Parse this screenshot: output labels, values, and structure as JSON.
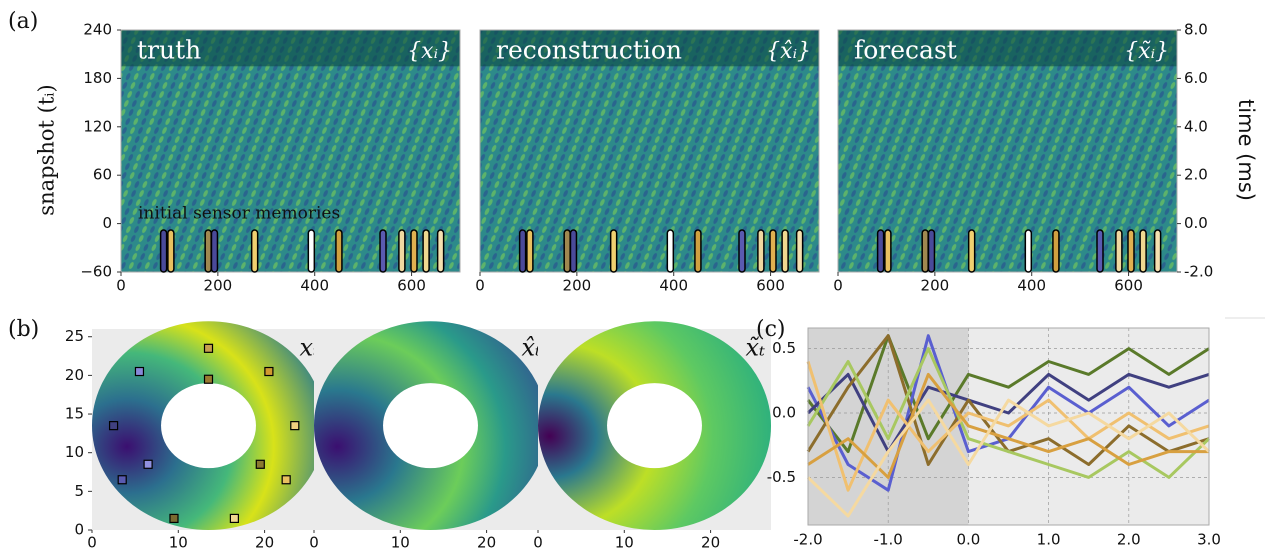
{
  "chart_data": [
    {
      "type": "heatmap",
      "label": "(a)",
      "ylabel": "snapshot (tᵢ)",
      "y2label": "time (ms)",
      "annotation": "initial sensor memories",
      "subplots": [
        {
          "title": "truth",
          "symbol": "{xᵢ}"
        },
        {
          "title": "reconstruction",
          "symbol": "{x̂ᵢ}"
        },
        {
          "title": "forecast",
          "symbol": "{x̃ᵢ}"
        }
      ],
      "xlim": [
        0,
        700
      ],
      "xticks": [
        0,
        200,
        400,
        600
      ],
      "ylim": [
        -60,
        240
      ],
      "yticks": [
        {
          "value": -60,
          "label": "−60"
        },
        0,
        60,
        120,
        180,
        240
      ],
      "y2lim": [
        -2,
        8
      ],
      "y2ticks": [
        {
          "value": -2,
          "label": "-2.0"
        },
        {
          "value": 0,
          "label": "0.0"
        },
        {
          "value": 2,
          "label": "2.0"
        },
        {
          "value": 4,
          "label": "4.0"
        },
        {
          "value": 6,
          "label": "6.0"
        },
        {
          "value": 8,
          "label": "8.0"
        }
      ],
      "sensor_positions": [
        88,
        103,
        180,
        193,
        276,
        393,
        450,
        541,
        580,
        605,
        630,
        660
      ],
      "sensor_colors": [
        "#4a4a9a",
        "#e8c060",
        "#a08850",
        "#4a4a9a",
        "#f0d070",
        "#ffffff",
        "#d0a040",
        "#5a5ab0",
        "#f0d8a0",
        "#e0b050",
        "#f0d890",
        "#f5e0b0"
      ]
    },
    {
      "type": "annulus",
      "label": "(b)",
      "subplots": [
        {
          "symbol": "xₜ"
        },
        {
          "symbol": "x̂ₜ"
        },
        {
          "symbol": "x̃ₜ"
        }
      ],
      "xlim": [
        0,
        27
      ],
      "xticks": [
        0,
        10,
        20
      ],
      "ylim": [
        0,
        26
      ],
      "yticks": [
        0,
        5,
        10,
        15,
        20,
        25
      ],
      "sensors": {
        "x": [
          2.5,
          3.5,
          5.5,
          6.5,
          9.5,
          13.5,
          13.5,
          16.5,
          19.5,
          20.5,
          22.5,
          23.5
        ],
        "y": [
          13.5,
          6.5,
          20.5,
          8.5,
          1.5,
          23.5,
          19.5,
          1.5,
          8.5,
          20.5,
          6.5,
          13.5
        ],
        "colors": [
          "#404080",
          "#5a5ab0",
          "#8888d8",
          "#9090e0",
          "#7a6a30",
          "#c8a050",
          "#9a7a30",
          "#f0d890",
          "#8a7a30",
          "#d09a30",
          "#e8c060",
          "#f0d080"
        ]
      }
    },
    {
      "type": "line",
      "label": "(c)",
      "x": [
        -2,
        -1.5,
        -1,
        -0.5,
        0,
        0.5,
        1,
        1.5,
        2,
        2.5,
        3
      ],
      "xlim": [
        -2,
        3
      ],
      "xticks": [
        {
          "value": -2,
          "label": "-2.0"
        },
        {
          "value": -1,
          "label": "-1.0"
        },
        {
          "value": 0,
          "label": "0.0"
        },
        {
          "value": 1,
          "label": "1.0"
        },
        {
          "value": 2,
          "label": "2.0"
        },
        {
          "value": 3,
          "label": "3.0"
        }
      ],
      "ylim": [
        -0.87,
        0.66
      ],
      "yticks": [
        -0.5,
        {
          "value": 0,
          "label": "0.0"
        },
        0.5
      ],
      "series": [
        {
          "color": "#5a7a2a",
          "values": [
            0.1,
            -0.3,
            0.6,
            -0.2,
            0.3,
            0.2,
            0.4,
            0.3,
            0.5,
            0.3,
            0.5
          ]
        },
        {
          "color": "#5a5fd0",
          "values": [
            0.2,
            -0.4,
            -0.6,
            0.6,
            -0.3,
            -0.2,
            0.2,
            0.0,
            0.2,
            -0.1,
            0.1
          ]
        },
        {
          "color": "#404080",
          "values": [
            0.0,
            0.3,
            -0.3,
            0.2,
            0.1,
            0.0,
            0.3,
            0.1,
            0.3,
            0.2,
            0.3
          ]
        },
        {
          "color": "#8c6d2c",
          "values": [
            -0.3,
            0.2,
            0.6,
            -0.4,
            0.1,
            -0.3,
            -0.2,
            -0.4,
            -0.1,
            -0.3,
            -0.2
          ]
        },
        {
          "color": "#a8c860",
          "values": [
            -0.1,
            0.4,
            -0.2,
            0.5,
            -0.2,
            -0.3,
            -0.4,
            -0.5,
            -0.3,
            -0.5,
            -0.2
          ]
        },
        {
          "color": "#f0c070",
          "values": [
            0.4,
            -0.6,
            0.1,
            -0.3,
            0.0,
            -0.1,
            0.1,
            -0.2,
            0.0,
            -0.2,
            -0.1
          ]
        },
        {
          "color": "#d8a040",
          "values": [
            -0.4,
            -0.2,
            -0.5,
            0.3,
            -0.1,
            -0.2,
            -0.3,
            -0.2,
            -0.4,
            -0.3,
            -0.3
          ]
        },
        {
          "color": "#f5d9a0",
          "values": [
            -0.5,
            -0.8,
            -0.3,
            0.1,
            -0.4,
            0.1,
            -0.1,
            0.0,
            -0.2,
            0.0,
            -0.3
          ]
        }
      ],
      "grid": true,
      "shade_before": 0
    }
  ]
}
